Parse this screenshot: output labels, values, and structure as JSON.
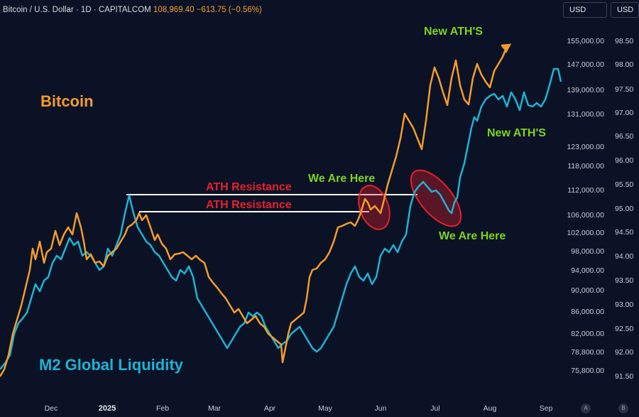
{
  "header": {
    "symbol": "Bitcoin / U.S. Dollar · 1D · CAPITALCOM",
    "price": "108,969.40",
    "change": "−613.75 (−0.56%)",
    "currency_left": "USD",
    "currency_right": "USD",
    "icon_a": "A",
    "icon_b": "B"
  },
  "chart_data": {
    "type": "line",
    "annotations": {
      "bitcoin_label": "Bitcoin",
      "m2_label": "M2 Global Liquidity",
      "ath_resistance_1": "ATH Resistance",
      "ath_resistance_2": "ATH Resistance",
      "we_are_here_1": "We Are Here",
      "we_are_here_2": "We Are Here",
      "new_ath_1": "New ATH'S",
      "new_ath_2": "New ATH'S"
    },
    "x_ticks": [
      "Dec",
      "2025",
      "Feb",
      "Mar",
      "Apr",
      "May",
      "Jun",
      "Jul",
      "Aug",
      "Sep"
    ],
    "y_left_ticks": [
      "155,000.00",
      "147,000.00",
      "139,000.00",
      "131,000.00",
      "123,000.00",
      "118,000.00",
      "112,000.00",
      "106,000.00",
      "102,000.00",
      "98,000.00",
      "94,000.00",
      "90,000.00",
      "86,000.00",
      "82,000.00",
      "78,800.00",
      "75,800.00"
    ],
    "y_right_ticks": [
      "98.50",
      "98.00",
      "97.50",
      "97.00",
      "96.50",
      "96.00",
      "95.50",
      "95.00",
      "94.50",
      "94.00",
      "93.50",
      "93.00",
      "92.50",
      "92.00",
      "91.50"
    ],
    "colors": {
      "bitcoin": "#f39c2a",
      "m2": "#1fb3d2",
      "resistance": "#ffffff",
      "annotation_red": "#e8202a",
      "annotation_green": "#7ed321",
      "bg": "#0b1226"
    }
  }
}
